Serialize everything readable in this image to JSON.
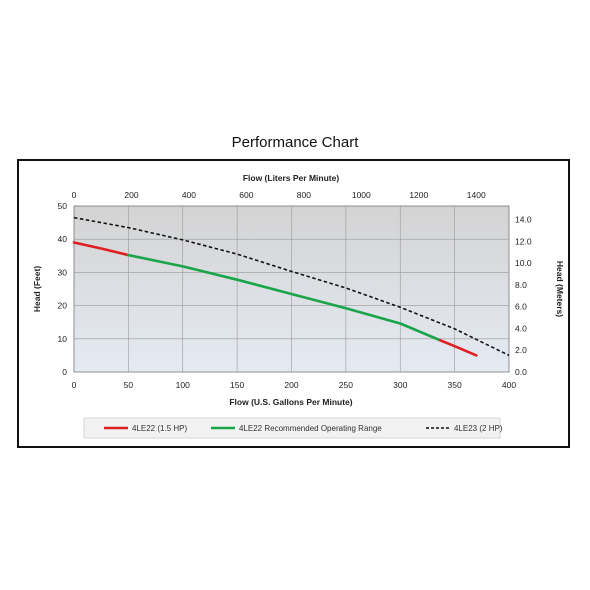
{
  "page_title": "Performance Chart",
  "chart_data": {
    "type": "line",
    "x_primary": {
      "label": "Flow (U.S. Gallons Per Minute)",
      "range": [
        0,
        400
      ],
      "ticks": [
        0,
        50,
        100,
        150,
        200,
        250,
        300,
        350,
        400
      ]
    },
    "x_secondary": {
      "label": "Flow (Liters Per Minute)",
      "range": [
        0,
        1514
      ],
      "ticks": [
        0,
        200,
        400,
        600,
        800,
        1000,
        1200,
        1400
      ]
    },
    "y_primary": {
      "label": "Head (Feet)",
      "range": [
        0,
        50
      ],
      "ticks": [
        0,
        10,
        20,
        30,
        40,
        50
      ]
    },
    "y_secondary": {
      "label": "Head (Meters)",
      "range": [
        0,
        15.24
      ],
      "ticks": [
        "0.0",
        "2.0",
        "4.0",
        "6.0",
        "8.0",
        "10.0",
        "12.0",
        "14.0"
      ]
    },
    "grid": true,
    "legend_position": "bottom",
    "series": [
      {
        "name": "4LE22 (1.5 HP)",
        "color": "#e02020",
        "style": "solid",
        "x": [
          0,
          25,
          50
        ],
        "y": [
          39,
          37.2,
          35.2
        ]
      },
      {
        "name": "4LE22 (1.5 HP)",
        "color": "#e02020",
        "style": "solid",
        "x": [
          335,
          352,
          370
        ],
        "y": [
          9.8,
          7.5,
          5
        ]
      },
      {
        "name": "4LE22 Recommended Operating Range",
        "color": "#1aa54a",
        "style": "solid",
        "x": [
          50,
          100,
          150,
          200,
          250,
          300,
          335
        ],
        "y": [
          35.2,
          31.8,
          27.8,
          23.5,
          19.2,
          14.6,
          9.8
        ]
      },
      {
        "name": "4LE23 (2 HP)",
        "color": "#111111",
        "style": "dashed",
        "x": [
          0,
          50,
          100,
          150,
          200,
          250,
          300,
          350,
          400
        ],
        "y": [
          46.5,
          43.5,
          39.8,
          35.5,
          30.3,
          25.3,
          19.5,
          13,
          5
        ]
      }
    ],
    "legend": [
      {
        "label": "4LE22 (1.5 HP)",
        "color": "#e02020",
        "style": "solid"
      },
      {
        "label": "4LE22 Recommended Operating Range",
        "color": "#1aa54a",
        "style": "solid"
      },
      {
        "label": "4LE23 (2 HP)",
        "color": "#111111",
        "style": "dashed"
      }
    ]
  }
}
